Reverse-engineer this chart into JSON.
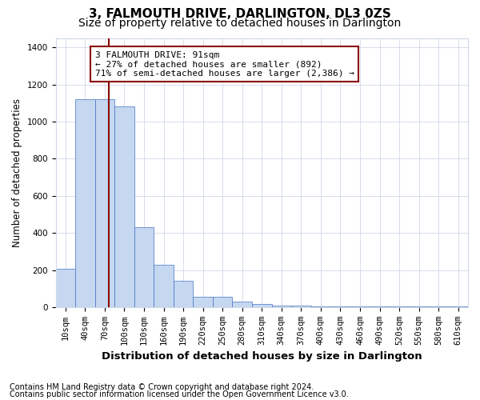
{
  "title": "3, FALMOUTH DRIVE, DARLINGTON, DL3 0ZS",
  "subtitle": "Size of property relative to detached houses in Darlington",
  "xlabel": "Distribution of detached houses by size in Darlington",
  "ylabel": "Number of detached properties",
  "footnote1": "Contains HM Land Registry data © Crown copyright and database right 2024.",
  "footnote2": "Contains public sector information licensed under the Open Government Licence v3.0.",
  "annotation_line1": "3 FALMOUTH DRIVE: 91sqm",
  "annotation_line2": "← 27% of detached houses are smaller (892)",
  "annotation_line3": "71% of semi-detached houses are larger (2,386) →",
  "property_size": 91,
  "bar_categories": [
    "10sqm",
    "40sqm",
    "70sqm",
    "100sqm",
    "130sqm",
    "160sqm",
    "190sqm",
    "220sqm",
    "250sqm",
    "280sqm",
    "310sqm",
    "340sqm",
    "370sqm",
    "400sqm",
    "430sqm",
    "460sqm",
    "490sqm",
    "520sqm",
    "550sqm",
    "580sqm",
    "610sqm"
  ],
  "bar_heights": [
    205,
    1120,
    1120,
    1080,
    430,
    230,
    140,
    55,
    55,
    30,
    15,
    10,
    10,
    5,
    5,
    5,
    5,
    5,
    5,
    5,
    5
  ],
  "bar_color": "#c5d8f0",
  "bar_edge_color": "#4472c4",
  "vline_color": "#8b0000",
  "annotation_box_color": "#8b0000",
  "ylim": [
    0,
    1450
  ],
  "yticks": [
    0,
    200,
    400,
    600,
    800,
    1000,
    1200,
    1400
  ],
  "background_color": "#ffffff",
  "grid_color": "#d0d8e8",
  "title_fontsize": 11,
  "subtitle_fontsize": 10,
  "xlabel_fontsize": 9.5,
  "ylabel_fontsize": 8.5,
  "tick_fontsize": 7.5,
  "annotation_fontsize": 8,
  "footnote_fontsize": 7
}
